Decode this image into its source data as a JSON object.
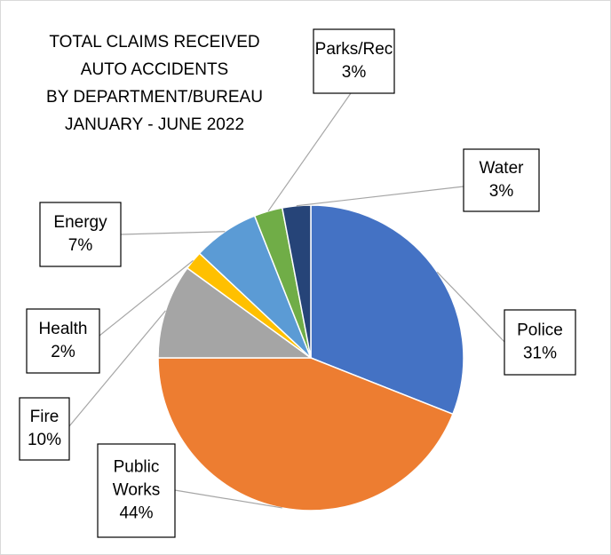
{
  "chart_data": {
    "type": "pie",
    "title_lines": [
      "TOTAL CLAIMS RECEIVED",
      "AUTO ACCIDENTS",
      "BY DEPARTMENT/BUREAU",
      "JANUARY - JUNE 2022"
    ],
    "title_line_colors": [
      "#000000",
      "#c55a11",
      "#000000",
      "#000000"
    ],
    "categories": [
      "Police",
      "Public Works",
      "Fire",
      "Health",
      "Energy",
      "Parks/Rec",
      "Water"
    ],
    "values": [
      31,
      44,
      10,
      2,
      7,
      3,
      3
    ],
    "value_labels": [
      "31%",
      "44%",
      "10%",
      "2%",
      "7%",
      "3%",
      "3%"
    ],
    "colors": [
      "#4472c4",
      "#ed7d31",
      "#a5a5a5",
      "#ffc000",
      "#5b9bd5",
      "#70ad47",
      "#264478"
    ]
  }
}
